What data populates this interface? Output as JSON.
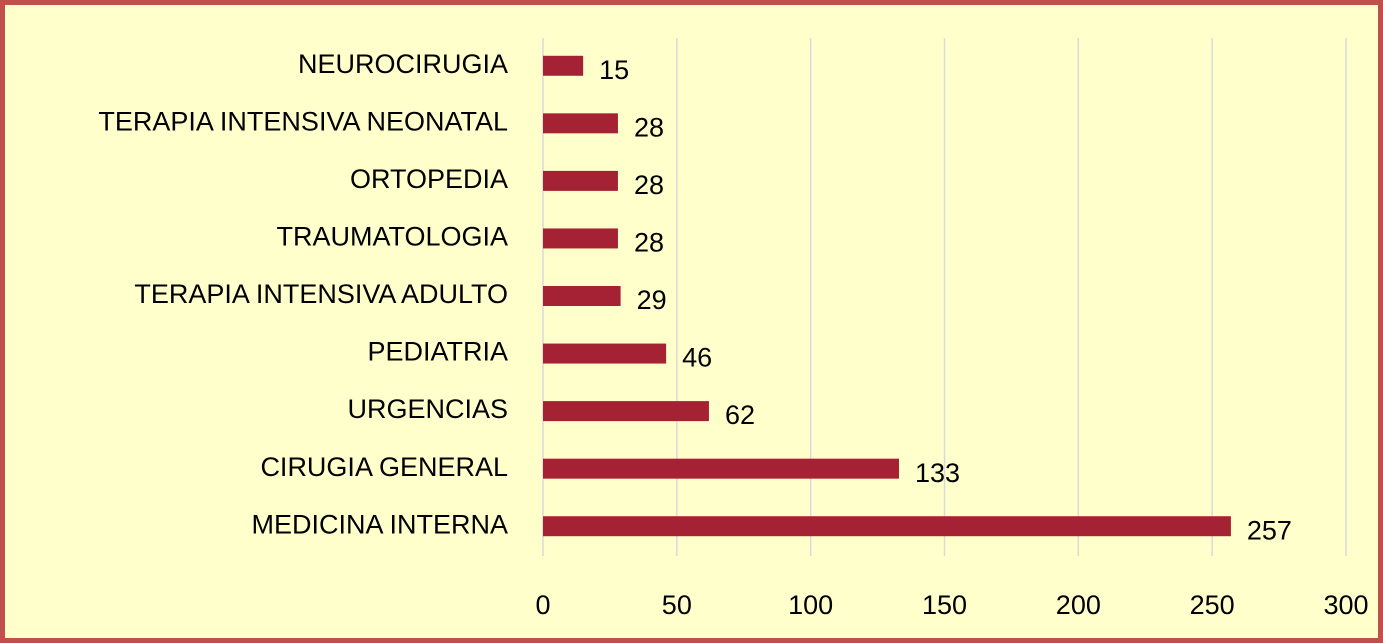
{
  "chart_data": {
    "type": "bar",
    "orientation": "horizontal",
    "categories": [
      "NEUROCIRUGIA",
      "TERAPIA INTENSIVA NEONATAL",
      "ORTOPEDIA",
      "TRAUMATOLOGIA",
      "TERAPIA INTENSIVA ADULTO",
      "PEDIATRIA",
      "URGENCIAS",
      "CIRUGIA GENERAL",
      "MEDICINA INTERNA"
    ],
    "values": [
      15,
      28,
      28,
      28,
      29,
      46,
      62,
      133,
      257
    ],
    "color": "#a52234",
    "xlim": [
      0,
      300
    ],
    "xticks": [
      0,
      50,
      100,
      150,
      200,
      250,
      300
    ],
    "grid": true
  }
}
